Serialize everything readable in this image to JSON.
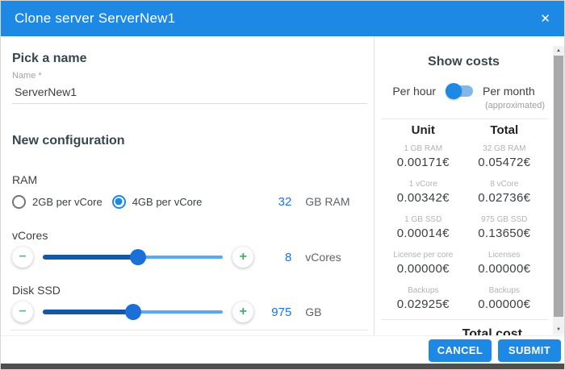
{
  "header": {
    "title": "Clone server ServerNew1"
  },
  "icons": {
    "close": "✕",
    "minus": "−",
    "plus": "+",
    "arrow_up": "▲",
    "arrow_down": "▼"
  },
  "name_section": {
    "heading": "Pick a name",
    "field_label": "Name *",
    "field_value": "ServerNew1"
  },
  "config_section": {
    "heading": "New configuration",
    "ram": {
      "label": "RAM",
      "options": [
        {
          "label": "2GB per vCore",
          "selected": false
        },
        {
          "label": "4GB per vCore",
          "selected": true
        }
      ],
      "value": "32",
      "unit": "GB RAM"
    },
    "vcores": {
      "label": "vCores",
      "value": "8",
      "unit": "vCores",
      "percent": 53
    },
    "disk": {
      "label": "Disk SSD",
      "value": "975",
      "unit": "GB",
      "percent": 50
    }
  },
  "costs_panel": {
    "heading": "Show costs",
    "toggle_left": "Per hour",
    "toggle_right": "Per month",
    "toggle_note": "(approximated)",
    "col_unit": "Unit",
    "col_total": "Total",
    "rows": [
      {
        "unit_label": "1 GB RAM",
        "unit_value": "0.00171€",
        "total_label": "32 GB RAM",
        "total_value": "0.05472€"
      },
      {
        "unit_label": "1 vCore",
        "unit_value": "0.00342€",
        "total_label": "8 vCore",
        "total_value": "0.02736€"
      },
      {
        "unit_label": "1 GB SSD",
        "unit_value": "0.00014€",
        "total_label": "975 GB SSD",
        "total_value": "0.13650€"
      },
      {
        "unit_label": "License per core",
        "unit_value": "0.00000€",
        "total_label": "Licenses",
        "total_value": "0.00000€"
      },
      {
        "unit_label": "Backups",
        "unit_value": "0.02925€",
        "total_label": "Backups",
        "total_value": "0.00000€"
      }
    ],
    "total_label": "Total cost"
  },
  "footer": {
    "cancel_label": "CANCEL",
    "submit_label": "SUBMIT"
  },
  "colors": {
    "header_blue": "#1e88e5",
    "value_blue": "#1a73e8",
    "slider_fill": "#1457a4",
    "slider_track": "#58aaf0",
    "slider_thumb": "#1b6fd6",
    "minus_green": "#55bda2",
    "plus_green": "#3fae66",
    "bottom_bar": "#4f4f4f"
  }
}
